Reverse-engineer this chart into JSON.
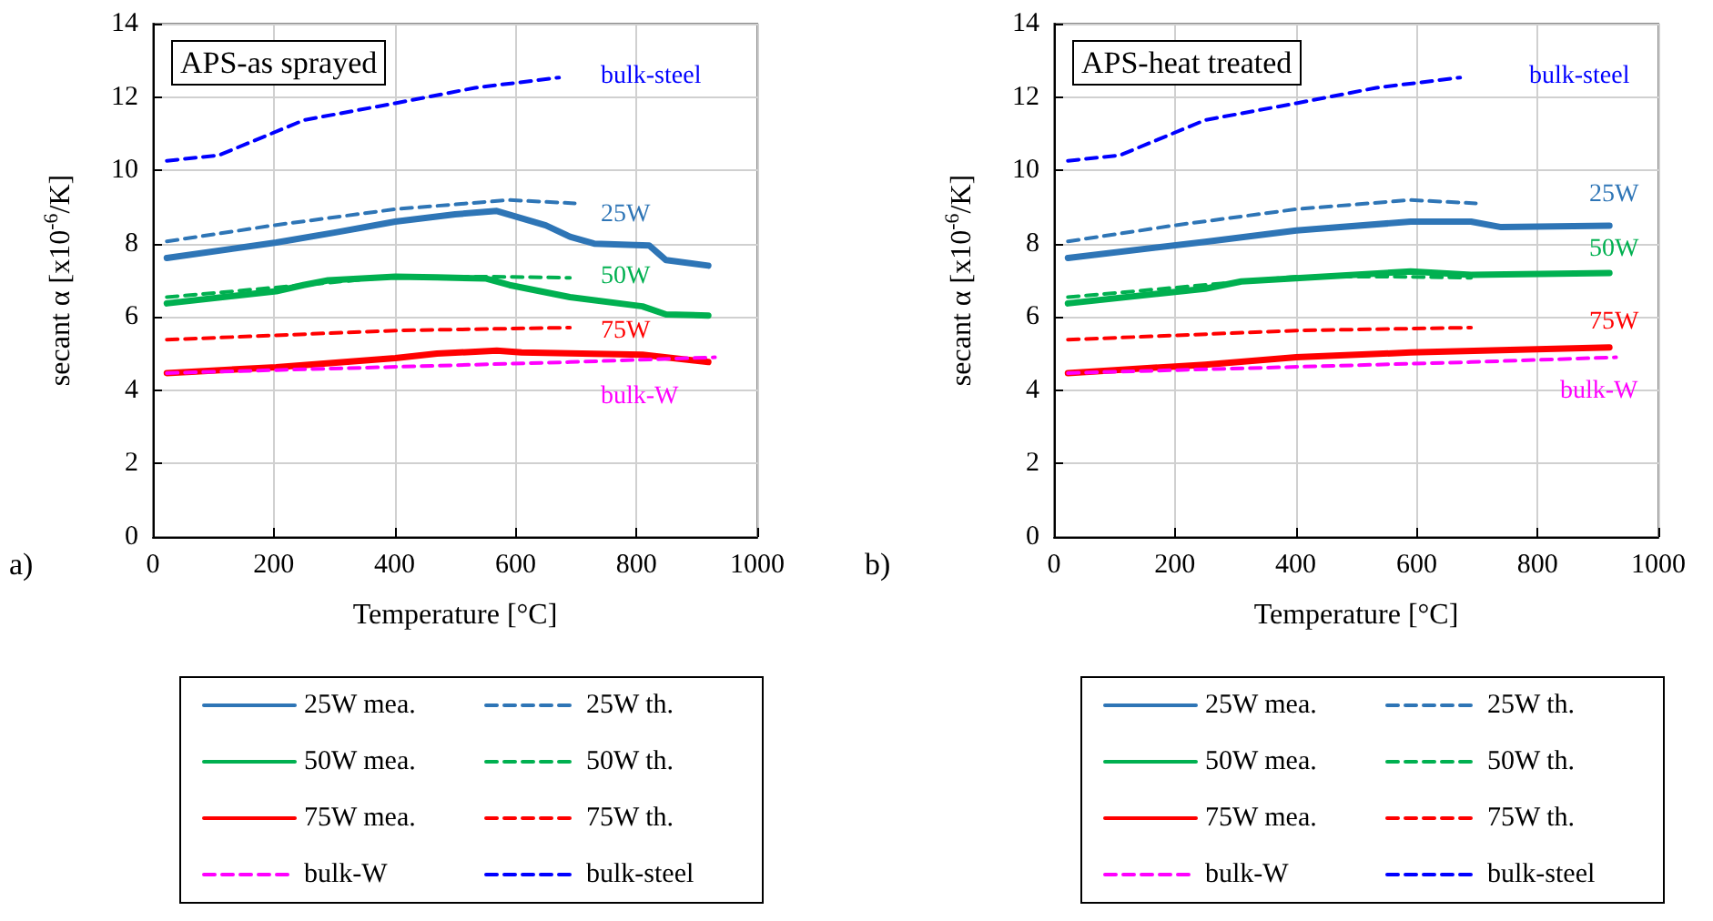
{
  "chart_data": [
    {
      "type": "line",
      "title": "APS-as sprayed",
      "xlabel": "Temperature [°C]",
      "ylabel": "secant α [x10$^{-6}$/K]",
      "xlim": [
        0,
        1000
      ],
      "xticks": [
        0,
        200,
        400,
        600,
        800,
        1000
      ],
      "ylim": [
        0,
        14
      ],
      "yticks": [
        0,
        2,
        4,
        6,
        8,
        10,
        12,
        14
      ],
      "grid": true,
      "legend": "bottom",
      "marker": "none",
      "series": [
        {
          "name": "25W mea.",
          "color": "#2e75b6",
          "line_style": "solid",
          "x": [
            23,
            204,
            300,
            401,
            500,
            569,
            650,
            690,
            730,
            821,
            849,
            919
          ],
          "values": [
            7.61,
            8.03,
            8.3,
            8.6,
            8.8,
            8.89,
            8.5,
            8.19,
            8.0,
            7.95,
            7.55,
            7.4
          ]
        },
        {
          "name": "25W th.",
          "color": "#2e75b6",
          "line_style": "dashed",
          "x": [
            23,
            200,
            401,
            590,
            698
          ],
          "values": [
            8.06,
            8.5,
            8.94,
            9.19,
            9.1
          ]
        },
        {
          "name": "50W mea.",
          "color": "#00b050",
          "line_style": "solid",
          "x": [
            23,
            204,
            249,
            290,
            401,
            470,
            550,
            590,
            690,
            810,
            849,
            919
          ],
          "values": [
            6.37,
            6.7,
            6.87,
            7.0,
            7.1,
            7.08,
            7.05,
            6.87,
            6.54,
            6.29,
            6.07,
            6.04
          ]
        },
        {
          "name": "50W th.",
          "color": "#00b050",
          "line_style": "dashed",
          "x": [
            23,
            200,
            401,
            560,
            690
          ],
          "values": [
            6.54,
            6.8,
            7.1,
            7.1,
            7.07
          ]
        },
        {
          "name": "75W mea.",
          "color": "#ff0000",
          "line_style": "solid",
          "x": [
            23,
            204,
            401,
            470,
            569,
            610,
            810,
            919
          ],
          "values": [
            4.47,
            4.63,
            4.88,
            5.0,
            5.08,
            5.03,
            4.97,
            4.77
          ]
        },
        {
          "name": "75W th.",
          "color": "#ff0000",
          "line_style": "dashed",
          "x": [
            23,
            401,
            690
          ],
          "values": [
            5.38,
            5.63,
            5.71
          ]
        },
        {
          "name": "bulk-W",
          "color": "#ff00ff",
          "line_style": "dashed",
          "x": [
            23,
            690,
            930
          ],
          "values": [
            4.47,
            4.77,
            4.9
          ]
        },
        {
          "name": "bulk-steel",
          "color": "#0000ff",
          "line_style": "dashed",
          "x": [
            23,
            109,
            250,
            401,
            533,
            672
          ],
          "values": [
            10.26,
            10.41,
            11.37,
            11.83,
            12.25,
            12.53
          ]
        }
      ],
      "annotations": [
        "a)",
        "bulk-steel",
        "25W",
        "50W",
        "75W",
        "bulk-W"
      ]
    },
    {
      "type": "line",
      "title": "APS-heat treated",
      "xlabel": "Temperature [°C]",
      "ylabel": "secant α [x10$^{-6}$/K]",
      "xlim": [
        0,
        1000
      ],
      "xticks": [
        0,
        200,
        400,
        600,
        800,
        1000
      ],
      "ylim": [
        0,
        14
      ],
      "yticks": [
        0,
        2,
        4,
        6,
        8,
        10,
        12,
        14
      ],
      "grid": true,
      "legend": "bottom",
      "marker": "none",
      "series": [
        {
          "name": "25W mea.",
          "color": "#2e75b6",
          "line_style": "solid",
          "x": [
            23,
            250,
            401,
            590,
            690,
            740,
            919
          ],
          "values": [
            7.61,
            8.05,
            8.36,
            8.6,
            8.6,
            8.45,
            8.49
          ]
        },
        {
          "name": "25W th.",
          "color": "#2e75b6",
          "line_style": "dashed",
          "x": [
            23,
            200,
            401,
            590,
            698
          ],
          "values": [
            8.06,
            8.5,
            8.94,
            9.19,
            9.1
          ]
        },
        {
          "name": "50W mea.",
          "color": "#00b050",
          "line_style": "solid",
          "x": [
            23,
            250,
            310,
            590,
            690,
            919
          ],
          "values": [
            6.37,
            6.77,
            6.97,
            7.24,
            7.15,
            7.2
          ]
        },
        {
          "name": "50W th.",
          "color": "#00b050",
          "line_style": "dashed",
          "x": [
            23,
            200,
            401,
            560,
            690
          ],
          "values": [
            6.54,
            6.8,
            7.1,
            7.1,
            7.07
          ]
        },
        {
          "name": "75W mea.",
          "color": "#ff0000",
          "line_style": "solid",
          "x": [
            23,
            250,
            401,
            590,
            919
          ],
          "values": [
            4.47,
            4.7,
            4.9,
            5.03,
            5.17
          ]
        },
        {
          "name": "75W th.",
          "color": "#ff0000",
          "line_style": "dashed",
          "x": [
            23,
            401,
            690
          ],
          "values": [
            5.38,
            5.63,
            5.71
          ]
        },
        {
          "name": "bulk-W",
          "color": "#ff00ff",
          "line_style": "dashed",
          "x": [
            23,
            690,
            930
          ],
          "values": [
            4.47,
            4.77,
            4.9
          ]
        },
        {
          "name": "bulk-steel",
          "color": "#0000ff",
          "line_style": "dashed",
          "x": [
            23,
            109,
            250,
            401,
            533,
            672
          ],
          "values": [
            10.26,
            10.41,
            11.37,
            11.83,
            12.25,
            12.53
          ]
        }
      ],
      "annotations": [
        "b)",
        "bulk-steel",
        "25W",
        "50W",
        "75W",
        "bulk-W"
      ]
    }
  ]
}
